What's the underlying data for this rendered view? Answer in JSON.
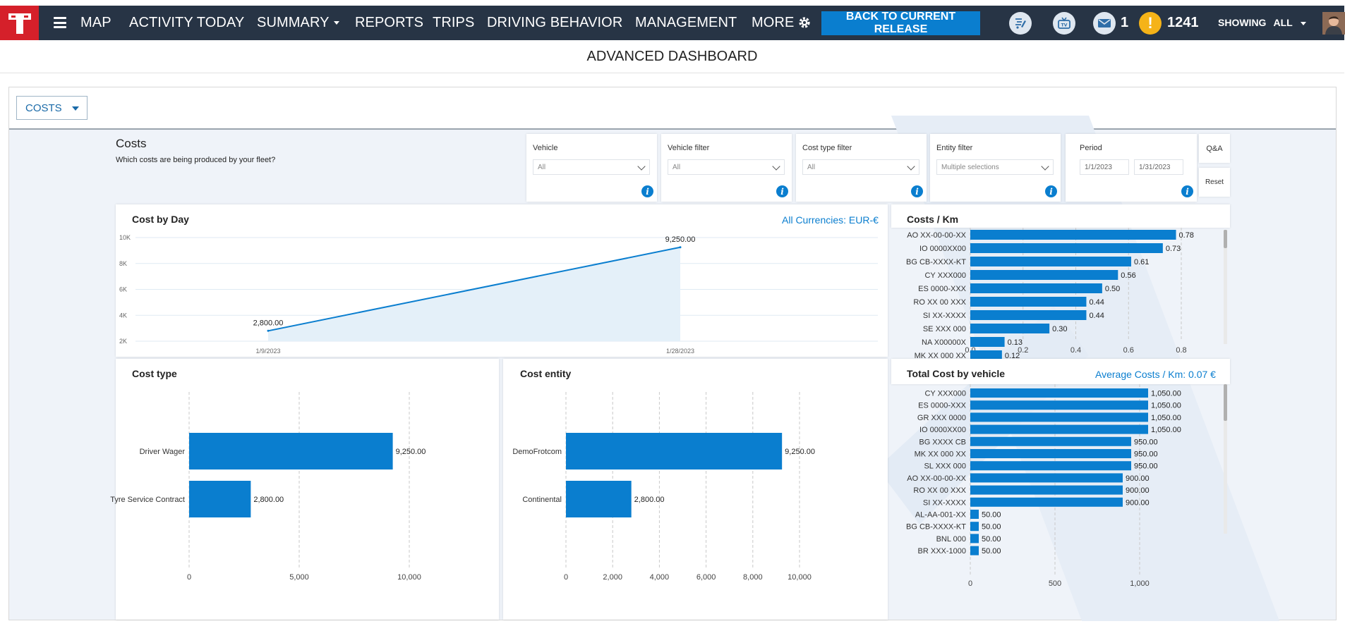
{
  "nav": {
    "items": [
      "MAP",
      "ACTIVITY TODAY",
      "SUMMARY",
      "REPORTS",
      "TRIPS",
      "DRIVING BEHAVIOR",
      "MANAGEMENT",
      "MORE"
    ],
    "release_button": "BACK TO CURRENT RELEASE",
    "messages_count": "1",
    "alerts_count": "1241",
    "showing_label": "SHOWING",
    "showing_value": "ALL"
  },
  "page_title": "ADVANCED DASHBOARD",
  "report_selector": "COSTS",
  "report": {
    "title": "Costs",
    "subtitle": "Which costs are being produced by your fleet?"
  },
  "filters": {
    "vehicle": {
      "label": "Vehicle",
      "value": "All"
    },
    "vehicle_filter": {
      "label": "Vehicle filter",
      "value": "All"
    },
    "cost_type_filter": {
      "label": "Cost type filter",
      "value": "All"
    },
    "entity_filter": {
      "label": "Entity filter",
      "value": "Multiple selections"
    },
    "period": {
      "label": "Period",
      "from": "1/1/2023",
      "to": "1/31/2023"
    },
    "qa_button": "Q&A",
    "reset_button": "Reset"
  },
  "panels": {
    "cost_by_day": {
      "title": "Cost by Day",
      "link": "All Currencies: EUR-€"
    },
    "costs_km": {
      "title": "Costs / Km"
    },
    "cost_type": {
      "title": "Cost type"
    },
    "cost_entity": {
      "title": "Cost entity"
    },
    "total_cost": {
      "title": "Total Cost by vehicle",
      "link": "Average Costs / Km: 0.07 €"
    }
  },
  "colors": {
    "accent": "#0a7ecf",
    "navbar": "#273445",
    "brand": "#d5202a",
    "alert": "#f5b318"
  },
  "icons": [
    "menu-icon",
    "gear-icon",
    "route-icon",
    "tv-icon",
    "mail-icon",
    "alert-icon",
    "chevron-down-icon",
    "info-icon"
  ],
  "chart_data": [
    {
      "id": "cost_by_day",
      "type": "area",
      "x": [
        "1/9/2023",
        "1/28/2023"
      ],
      "y": [
        2800,
        9250
      ],
      "data_labels": [
        "2,800.00",
        "9,250.00"
      ],
      "y_ticks": [
        "2K",
        "4K",
        "6K",
        "8K",
        "10K"
      ],
      "ylim": [
        2000,
        10000
      ]
    },
    {
      "id": "costs_km",
      "type": "bar",
      "orientation": "horizontal",
      "categories": [
        "AO XX-00-00-XX",
        "IO 0000XX00",
        "BG CB-XXXX-KT",
        "CY XXX000",
        "ES 0000-XXX",
        "RO XX 00 XXX",
        "SI XX-XXXX",
        "SE XXX 000",
        "NA X00000X",
        "MK XX 000 XX"
      ],
      "values": [
        0.78,
        0.73,
        0.61,
        0.56,
        0.5,
        0.44,
        0.44,
        0.3,
        0.13,
        0.12
      ],
      "data_labels": [
        "0.78",
        "0.73",
        "0.61",
        "0.56",
        "0.50",
        "0.44",
        "0.44",
        "0.30",
        "0.13",
        "0.12"
      ],
      "x_ticks": [
        "0.0",
        "0.2",
        "0.4",
        "0.6",
        "0.8"
      ],
      "xlim": [
        0,
        0.8
      ]
    },
    {
      "id": "cost_type",
      "type": "bar",
      "orientation": "horizontal",
      "categories": [
        "Driver Wager",
        "Tyre Service Contract"
      ],
      "values": [
        9250,
        2800
      ],
      "data_labels": [
        "9,250.00",
        "2,800.00"
      ],
      "x_ticks": [
        "0",
        "5,000",
        "10,000"
      ],
      "xlim": [
        0,
        10000
      ]
    },
    {
      "id": "cost_entity",
      "type": "bar",
      "orientation": "horizontal",
      "categories": [
        "DemoFrotcom",
        "Continental"
      ],
      "values": [
        9250,
        2800
      ],
      "data_labels": [
        "9,250.00",
        "2,800.00"
      ],
      "x_ticks": [
        "0",
        "2,000",
        "4,000",
        "6,000",
        "8,000",
        "10,000"
      ],
      "xlim": [
        0,
        10000
      ]
    },
    {
      "id": "total_cost",
      "type": "bar",
      "orientation": "horizontal",
      "categories": [
        "CY XXX000",
        "ES 0000-XXX",
        "GR XXX 0000",
        "IO 0000XX00",
        "BG XXXX CB",
        "MK XX 000 XX",
        "SL XXX 000",
        "AO XX-00-00-XX",
        "RO XX 00 XXX",
        "SI XX-XXXX",
        "AL-AA-001-XX",
        "BG CB-XXXX-KT",
        "BNL 000",
        "BR XXX-1000"
      ],
      "values": [
        1050,
        1050,
        1050,
        1050,
        950,
        950,
        950,
        900,
        900,
        900,
        50,
        50,
        50,
        50
      ],
      "data_labels": [
        "1,050.00",
        "1,050.00",
        "1,050.00",
        "1,050.00",
        "950.00",
        "950.00",
        "950.00",
        "900.00",
        "900.00",
        "900.00",
        "50.00",
        "50.00",
        "50.00",
        "50.00"
      ],
      "x_ticks": [
        "0",
        "500",
        "1,000"
      ],
      "xlim": [
        0,
        1250
      ]
    }
  ]
}
